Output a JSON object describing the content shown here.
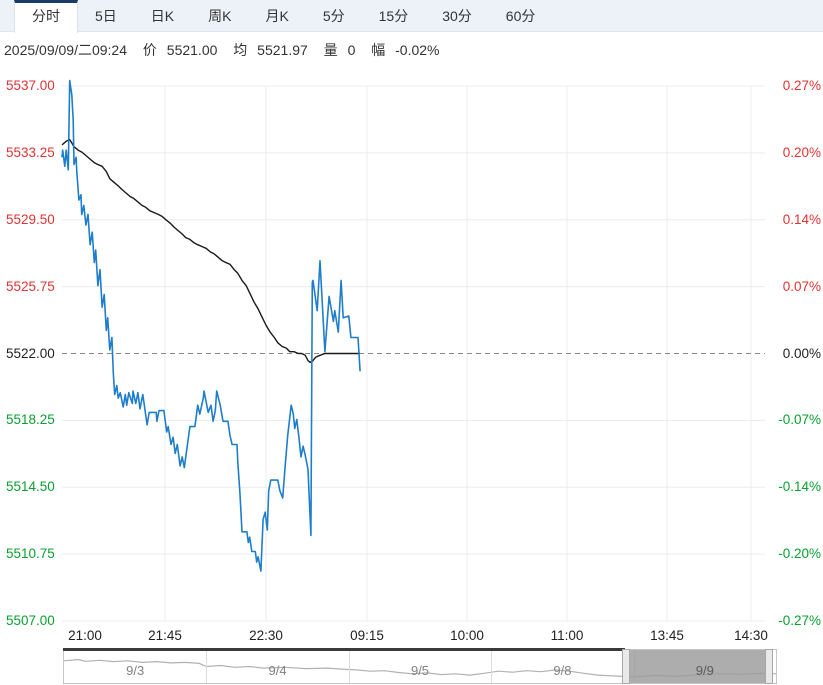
{
  "tabs": [
    {
      "key": "minute",
      "label": "分时",
      "active": true
    },
    {
      "key": "5day",
      "label": "5日",
      "active": false
    },
    {
      "key": "day-k",
      "label": "日K",
      "active": false
    },
    {
      "key": "week-k",
      "label": "周K",
      "active": false
    },
    {
      "key": "month-k",
      "label": "月K",
      "active": false
    },
    {
      "key": "5min",
      "label": "5分",
      "active": false
    },
    {
      "key": "15min",
      "label": "15分",
      "active": false
    },
    {
      "key": "30min",
      "label": "30分",
      "active": false
    },
    {
      "key": "60min",
      "label": "60分",
      "active": false
    }
  ],
  "quote_bar": {
    "datetime": "2025/09/09/二09:24",
    "price_label": "价",
    "price": "5521.00",
    "avg_label": "均",
    "avg": "5521.97",
    "volume_label": "量",
    "volume": "0",
    "change_label": "幅",
    "change": "-0.02%"
  },
  "palette": {
    "up": "#e03333",
    "down": "#0aa030",
    "neutral": "#222222",
    "price_line": "#1f7ecb",
    "avg_line": "#1a1a1a",
    "grid": "#ececec",
    "baseline": "#8a8a8a",
    "nav_spark": "#b2b2b2",
    "nav_mask": "#3a3a3a"
  },
  "chart_data": {
    "type": "line",
    "title": "分时",
    "x_axis": {
      "labels": [
        "21:00",
        "21:45",
        "22:30",
        "09:15",
        "10:00",
        "11:00",
        "13:45",
        "14:30"
      ]
    },
    "y_range": [
      5507.0,
      5537.0
    ],
    "baseline_value": 5522.0,
    "y_axis_left": {
      "ticks": [
        {
          "label": "5537.00",
          "color": "up"
        },
        {
          "label": "5533.25",
          "color": "up"
        },
        {
          "label": "5529.50",
          "color": "up"
        },
        {
          "label": "5525.75",
          "color": "up"
        },
        {
          "label": "5522.00",
          "color": "neutral"
        },
        {
          "label": "5518.25",
          "color": "down"
        },
        {
          "label": "5514.50",
          "color": "down"
        },
        {
          "label": "5510.75",
          "color": "down"
        },
        {
          "label": "5507.00",
          "color": "down"
        }
      ]
    },
    "y_axis_right": {
      "ticks": [
        {
          "label": "0.27%",
          "color": "up"
        },
        {
          "label": "0.20%",
          "color": "up"
        },
        {
          "label": "0.14%",
          "color": "up"
        },
        {
          "label": "0.07%",
          "color": "up"
        },
        {
          "label": "0.00%",
          "color": "neutral"
        },
        {
          "label": "-0.07%",
          "color": "down"
        },
        {
          "label": "-0.14%",
          "color": "down"
        },
        {
          "label": "-0.20%",
          "color": "down"
        },
        {
          "label": "-0.27%",
          "color": "down"
        }
      ]
    },
    "series": [
      {
        "name": "price",
        "color_key": "price_line",
        "points": [
          [
            0.0,
            5533.0
          ],
          [
            0.001,
            5533.4
          ],
          [
            0.004,
            5532.5
          ],
          [
            0.006,
            5533.4
          ],
          [
            0.009,
            5532.3
          ],
          [
            0.011,
            5537.3
          ],
          [
            0.014,
            5536.5
          ],
          [
            0.016,
            5535.1
          ],
          [
            0.017,
            5532.6
          ],
          [
            0.02,
            5533.0
          ],
          [
            0.021,
            5532.2
          ],
          [
            0.024,
            5530.6
          ],
          [
            0.027,
            5530.9
          ],
          [
            0.028,
            5529.8
          ],
          [
            0.031,
            5530.3
          ],
          [
            0.034,
            5529.2
          ],
          [
            0.037,
            5529.8
          ],
          [
            0.04,
            5528.1
          ],
          [
            0.043,
            5528.8
          ],
          [
            0.046,
            5527.1
          ],
          [
            0.048,
            5527.8
          ],
          [
            0.051,
            5525.8
          ],
          [
            0.054,
            5526.7
          ],
          [
            0.057,
            5524.6
          ],
          [
            0.06,
            5525.3
          ],
          [
            0.063,
            5523.3
          ],
          [
            0.065,
            5524.0
          ],
          [
            0.068,
            5522.2
          ],
          [
            0.071,
            5522.9
          ],
          [
            0.073,
            5520.9
          ],
          [
            0.075,
            5519.7
          ],
          [
            0.078,
            5520.2
          ],
          [
            0.08,
            5519.5
          ],
          [
            0.083,
            5519.8
          ],
          [
            0.087,
            5519.0
          ],
          [
            0.09,
            5519.7
          ],
          [
            0.092,
            5519.1
          ],
          [
            0.095,
            5519.8
          ],
          [
            0.1,
            5519.2
          ],
          [
            0.101,
            5519.9
          ],
          [
            0.105,
            5519.2
          ],
          [
            0.108,
            5519.8
          ],
          [
            0.111,
            5518.9
          ],
          [
            0.115,
            5519.7
          ],
          [
            0.121,
            5518.0
          ],
          [
            0.124,
            5518.7
          ],
          [
            0.134,
            5518.7
          ],
          [
            0.135,
            5518.2
          ],
          [
            0.138,
            5518.8
          ],
          [
            0.145,
            5518.8
          ],
          [
            0.149,
            5517.6
          ],
          [
            0.151,
            5517.9
          ],
          [
            0.155,
            5516.9
          ],
          [
            0.158,
            5517.3
          ],
          [
            0.161,
            5516.4
          ],
          [
            0.164,
            5516.9
          ],
          [
            0.168,
            5515.7
          ],
          [
            0.171,
            5516.2
          ],
          [
            0.174,
            5515.6
          ],
          [
            0.182,
            5517.9
          ],
          [
            0.189,
            5517.9
          ],
          [
            0.192,
            5518.8
          ],
          [
            0.193,
            5519.1
          ],
          [
            0.196,
            5518.6
          ],
          [
            0.201,
            5519.5
          ],
          [
            0.202,
            5519.9
          ],
          [
            0.206,
            5519.1
          ],
          [
            0.208,
            5518.7
          ],
          [
            0.212,
            5519.1
          ],
          [
            0.215,
            5518.2
          ],
          [
            0.218,
            5518.8
          ],
          [
            0.22,
            5519.9
          ],
          [
            0.225,
            5519.1
          ],
          [
            0.229,
            5518.2
          ],
          [
            0.236,
            5518.2
          ],
          [
            0.239,
            5517.4
          ],
          [
            0.242,
            5516.9
          ],
          [
            0.249,
            5516.9
          ],
          [
            0.25,
            5515.9
          ],
          [
            0.253,
            5514.2
          ],
          [
            0.256,
            5512.0
          ],
          [
            0.263,
            5512.0
          ],
          [
            0.265,
            5511.4
          ],
          [
            0.267,
            5511.7
          ],
          [
            0.27,
            5510.9
          ],
          [
            0.275,
            5510.9
          ],
          [
            0.277,
            5510.3
          ],
          [
            0.279,
            5510.6
          ],
          [
            0.283,
            5509.8
          ],
          [
            0.286,
            5512.7
          ],
          [
            0.289,
            5513.1
          ],
          [
            0.292,
            5512.1
          ],
          [
            0.294,
            5514.3
          ],
          [
            0.297,
            5514.9
          ],
          [
            0.307,
            5514.9
          ],
          [
            0.31,
            5514.3
          ],
          [
            0.314,
            5513.9
          ],
          [
            0.317,
            5515.5
          ],
          [
            0.321,
            5517.4
          ],
          [
            0.326,
            5519.1
          ],
          [
            0.329,
            5518.6
          ],
          [
            0.331,
            5517.8
          ],
          [
            0.334,
            5518.3
          ],
          [
            0.337,
            5517.3
          ],
          [
            0.34,
            5516.2
          ],
          [
            0.343,
            5516.8
          ],
          [
            0.346,
            5516.3
          ],
          [
            0.35,
            5515.5
          ],
          [
            0.353,
            5512.7
          ],
          [
            0.354,
            5511.8
          ],
          [
            0.356,
            5526.0
          ],
          [
            0.357,
            5526.1
          ],
          [
            0.363,
            5524.4
          ],
          [
            0.367,
            5527.2
          ],
          [
            0.374,
            5522.1
          ],
          [
            0.38,
            5525.2
          ],
          [
            0.386,
            5523.8
          ],
          [
            0.388,
            5524.4
          ],
          [
            0.393,
            5523.2
          ],
          [
            0.397,
            5526.1
          ],
          [
            0.4,
            5524.0
          ],
          [
            0.408,
            5524.1
          ],
          [
            0.411,
            5522.9
          ],
          [
            0.421,
            5522.9
          ],
          [
            0.424,
            5521.0
          ]
        ]
      },
      {
        "name": "average",
        "color_key": "avg_line",
        "points": [
          [
            0.0,
            5533.7
          ],
          [
            0.006,
            5533.9
          ],
          [
            0.011,
            5534.0
          ],
          [
            0.017,
            5533.6
          ],
          [
            0.023,
            5533.4
          ],
          [
            0.028,
            5533.3
          ],
          [
            0.034,
            5533.1
          ],
          [
            0.04,
            5532.9
          ],
          [
            0.046,
            5532.7
          ],
          [
            0.051,
            5532.6
          ],
          [
            0.057,
            5532.5
          ],
          [
            0.063,
            5532.2
          ],
          [
            0.068,
            5531.8
          ],
          [
            0.074,
            5531.6
          ],
          [
            0.08,
            5531.4
          ],
          [
            0.085,
            5531.2
          ],
          [
            0.091,
            5531.0
          ],
          [
            0.097,
            5530.8
          ],
          [
            0.102,
            5530.7
          ],
          [
            0.108,
            5530.5
          ],
          [
            0.114,
            5530.3
          ],
          [
            0.119,
            5530.2
          ],
          [
            0.125,
            5530.0
          ],
          [
            0.131,
            5529.9
          ],
          [
            0.137,
            5529.8
          ],
          [
            0.142,
            5529.7
          ],
          [
            0.148,
            5529.5
          ],
          [
            0.154,
            5529.3
          ],
          [
            0.159,
            5529.1
          ],
          [
            0.165,
            5528.9
          ],
          [
            0.171,
            5528.7
          ],
          [
            0.176,
            5528.5
          ],
          [
            0.182,
            5528.4
          ],
          [
            0.188,
            5528.2
          ],
          [
            0.193,
            5528.1
          ],
          [
            0.199,
            5528.0
          ],
          [
            0.205,
            5527.9
          ],
          [
            0.211,
            5527.7
          ],
          [
            0.216,
            5527.6
          ],
          [
            0.222,
            5527.4
          ],
          [
            0.228,
            5527.2
          ],
          [
            0.233,
            5527.1
          ],
          [
            0.239,
            5527.0
          ],
          [
            0.245,
            5526.7
          ],
          [
            0.25,
            5526.5
          ],
          [
            0.256,
            5526.1
          ],
          [
            0.262,
            5525.8
          ],
          [
            0.267,
            5525.4
          ],
          [
            0.273,
            5524.9
          ],
          [
            0.279,
            5524.5
          ],
          [
            0.285,
            5524.0
          ],
          [
            0.29,
            5523.6
          ],
          [
            0.296,
            5523.2
          ],
          [
            0.302,
            5522.9
          ],
          [
            0.307,
            5522.6
          ],
          [
            0.313,
            5522.4
          ],
          [
            0.319,
            5522.3
          ],
          [
            0.324,
            5522.1
          ],
          [
            0.33,
            5522.1
          ],
          [
            0.336,
            5522.0
          ],
          [
            0.341,
            5522.0
          ],
          [
            0.346,
            5521.9
          ],
          [
            0.35,
            5521.6
          ],
          [
            0.353,
            5521.5
          ],
          [
            0.357,
            5521.6
          ],
          [
            0.361,
            5521.8
          ],
          [
            0.367,
            5521.9
          ],
          [
            0.374,
            5522.0
          ],
          [
            0.385,
            5522.0
          ],
          [
            0.4,
            5522.0
          ],
          [
            0.415,
            5522.0
          ],
          [
            0.424,
            5522.0
          ]
        ]
      }
    ],
    "navigator": {
      "dates": [
        "9/3",
        "9/4",
        "9/5",
        "9/8",
        "9/9"
      ],
      "selected_date": "9/9",
      "selection": [
        0.79,
        0.99
      ],
      "spark": [
        [
          0.0,
          0.3
        ],
        [
          0.02,
          0.25
        ],
        [
          0.03,
          0.32
        ],
        [
          0.05,
          0.28
        ],
        [
          0.07,
          0.33
        ],
        [
          0.09,
          0.3
        ],
        [
          0.11,
          0.36
        ],
        [
          0.13,
          0.33
        ],
        [
          0.15,
          0.38
        ],
        [
          0.17,
          0.36
        ],
        [
          0.19,
          0.4
        ],
        [
          0.2,
          0.52
        ],
        [
          0.22,
          0.48
        ],
        [
          0.24,
          0.55
        ],
        [
          0.26,
          0.52
        ],
        [
          0.28,
          0.58
        ],
        [
          0.31,
          0.55
        ],
        [
          0.34,
          0.6
        ],
        [
          0.37,
          0.58
        ],
        [
          0.39,
          0.62
        ],
        [
          0.41,
          0.65
        ],
        [
          0.43,
          0.7
        ],
        [
          0.45,
          0.68
        ],
        [
          0.47,
          0.75
        ],
        [
          0.49,
          0.8
        ],
        [
          0.51,
          0.76
        ],
        [
          0.53,
          0.83
        ],
        [
          0.55,
          0.8
        ],
        [
          0.57,
          0.85
        ],
        [
          0.59,
          0.78
        ],
        [
          0.61,
          0.7
        ],
        [
          0.63,
          0.74
        ],
        [
          0.65,
          0.68
        ],
        [
          0.67,
          0.72
        ],
        [
          0.69,
          0.65
        ],
        [
          0.71,
          0.7
        ],
        [
          0.73,
          0.78
        ],
        [
          0.75,
          0.85
        ],
        [
          0.77,
          0.88
        ],
        [
          0.8,
          0.92
        ],
        [
          0.83,
          0.86
        ],
        [
          0.86,
          0.9
        ],
        [
          0.89,
          0.84
        ],
        [
          0.92,
          0.8
        ],
        [
          0.95,
          0.82
        ],
        [
          0.98,
          0.78
        ],
        [
          1.0,
          0.8
        ]
      ]
    }
  }
}
